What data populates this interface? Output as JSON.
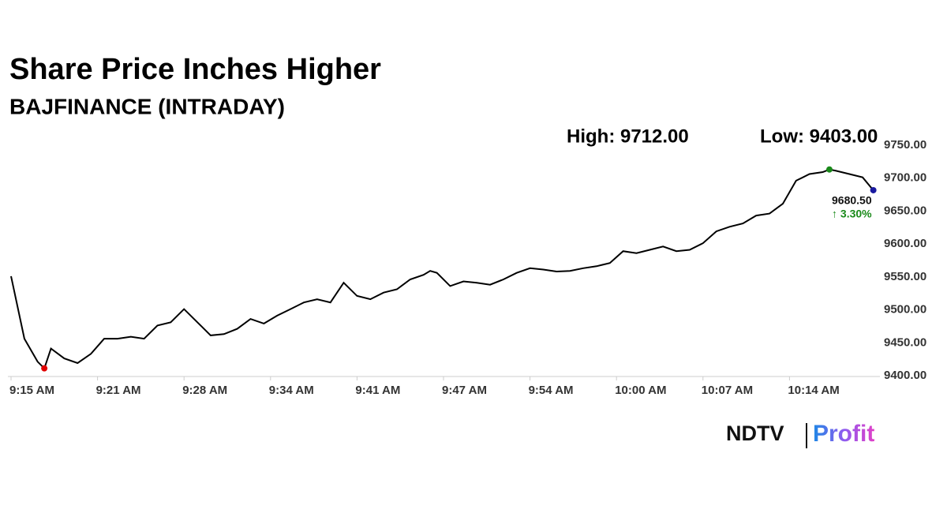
{
  "chart_data": {
    "type": "line",
    "title": "Share Price Inches Higher",
    "subtitle": "BAJFINANCE (INTRADAY)",
    "high_label": "High: 9712.00",
    "low_label": "Low: 9403.00",
    "last_label": "9680.50",
    "change_label": "↑ 3.30%",
    "brand": [
      "NDTV",
      "Profit"
    ],
    "color": "#000000",
    "x": [
      555,
      556,
      557,
      557.5,
      558,
      559,
      560,
      561,
      562,
      563,
      564,
      565,
      566,
      567,
      568,
      569,
      570,
      571,
      572,
      573,
      574,
      575,
      576,
      577,
      578,
      579,
      580,
      581,
      582,
      583,
      584,
      585,
      586,
      586.5,
      587,
      588,
      589,
      590,
      591,
      592,
      593,
      594,
      595,
      596,
      597,
      598,
      599,
      600,
      601,
      602,
      603,
      604,
      605,
      606,
      607,
      608,
      609,
      610,
      611,
      612,
      613,
      614,
      615,
      616,
      616.5,
      617,
      618,
      619,
      619.8
    ],
    "values": [
      9550,
      9455,
      9420,
      9410,
      9440,
      9425,
      9418,
      9432,
      9455,
      9455,
      9458,
      9455,
      9475,
      9480,
      9500,
      9480,
      9460,
      9462,
      9470,
      9485,
      9478,
      9490,
      9500,
      9510,
      9515,
      9510,
      9540,
      9520,
      9515,
      9525,
      9530,
      9545,
      9552,
      9558,
      9555,
      9535,
      9542,
      9540,
      9537,
      9545,
      9555,
      9562,
      9560,
      9557,
      9558,
      9562,
      9565,
      9570,
      9588,
      9585,
      9590,
      9595,
      9588,
      9590,
      9600,
      9618,
      9625,
      9630,
      9642,
      9645,
      9660,
      9695,
      9705,
      9708,
      9712,
      9710,
      9705,
      9700,
      9680.5
    ],
    "markers": [
      {
        "x": 557.5,
        "y": 9410,
        "color": "#e00000"
      },
      {
        "x": 616.5,
        "y": 9712,
        "color": "#1a8a1a"
      },
      {
        "x": 619.8,
        "y": 9680.5,
        "color": "#1a1aa0"
      }
    ],
    "xlim": [
      555,
      620
    ],
    "xticks": [
      {
        "value": 555,
        "label": "9:15 AM"
      },
      {
        "value": 561.5,
        "label": "9:21 AM"
      },
      {
        "value": 568,
        "label": "9:28 AM"
      },
      {
        "value": 574.5,
        "label": "9:34 AM"
      },
      {
        "value": 581,
        "label": "9:41 AM"
      },
      {
        "value": 587.5,
        "label": "9:47 AM"
      },
      {
        "value": 594,
        "label": "9:54 AM"
      },
      {
        "value": 600.5,
        "label": "10:00 AM"
      },
      {
        "value": 607,
        "label": "10:07 AM"
      },
      {
        "value": 613.5,
        "label": "10:14 AM"
      }
    ],
    "ylim": [
      9400,
      9750
    ],
    "yticks": [
      {
        "value": 9400,
        "label": "9400.00"
      },
      {
        "value": 9450,
        "label": "9450.00"
      },
      {
        "value": 9500,
        "label": "9500.00"
      },
      {
        "value": 9550,
        "label": "9550.00"
      },
      {
        "value": 9600,
        "label": "9600.00"
      },
      {
        "value": 9650,
        "label": "9650.00"
      },
      {
        "value": 9700,
        "label": "9700.00"
      },
      {
        "value": 9750,
        "label": "9750.00"
      }
    ]
  }
}
